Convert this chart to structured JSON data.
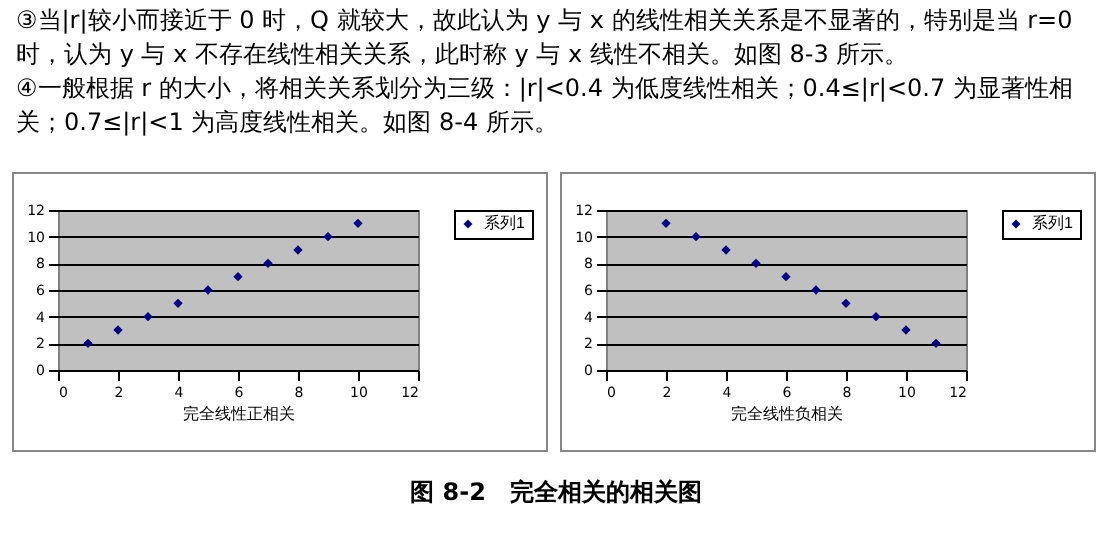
{
  "chart_data": [
    {
      "type": "scatter",
      "annotations": [
        "③当|r|较小而接近于 0 时，Q 就较大，故此认为 y 与 x 的线性相关关系是不显著的，特别是当 r=0 时，认为 y 与 x 不存在线性相关关系，此时称 y 与 x 线性不相关。如图 8-3 所示。",
        "④一般根据 r 的大小，将相关关系划分为三级：|r|<0.4 为低度线性相关；0.4≤|r|<0.7 为显著性相关；0.7≤|r|<1 为高度线性相关。如图 8-4 所示。"
      ],
      "xlabel": "完全线性正相关",
      "series": [
        {
          "name": "系列1",
          "color": "#000080",
          "x": [
            1,
            2,
            3,
            4,
            5,
            6,
            7,
            8,
            9,
            10
          ],
          "values": [
            2,
            3,
            4,
            5,
            6,
            7,
            8,
            9,
            10,
            11
          ]
        }
      ],
      "xlim": [
        0,
        12
      ],
      "xticks": [
        0,
        2,
        4,
        6,
        8,
        10,
        12
      ],
      "ylim": [
        0,
        12
      ],
      "yticks": [
        0,
        2,
        4,
        6,
        8,
        10,
        12
      ],
      "grid": "y",
      "legend": "right",
      "marker": "diamond"
    },
    {
      "type": "scatter",
      "annotations": [
        "图 8-2　完全相关的相关图"
      ],
      "xlabel": "完全线性负相关",
      "series": [
        {
          "name": "系列1",
          "color": "#000080",
          "x": [
            2,
            3,
            4,
            5,
            6,
            7,
            8,
            9,
            10,
            11
          ],
          "values": [
            11,
            10,
            9,
            8,
            7,
            6,
            5,
            4,
            3,
            2
          ]
        }
      ],
      "xlim": [
        0,
        12
      ],
      "xticks": [
        0,
        2,
        4,
        6,
        8,
        10,
        12
      ],
      "ylim": [
        0,
        12
      ],
      "yticks": [
        0,
        2,
        4,
        6,
        8,
        10,
        12
      ],
      "grid": "y",
      "legend": "right",
      "marker": "diamond"
    }
  ]
}
